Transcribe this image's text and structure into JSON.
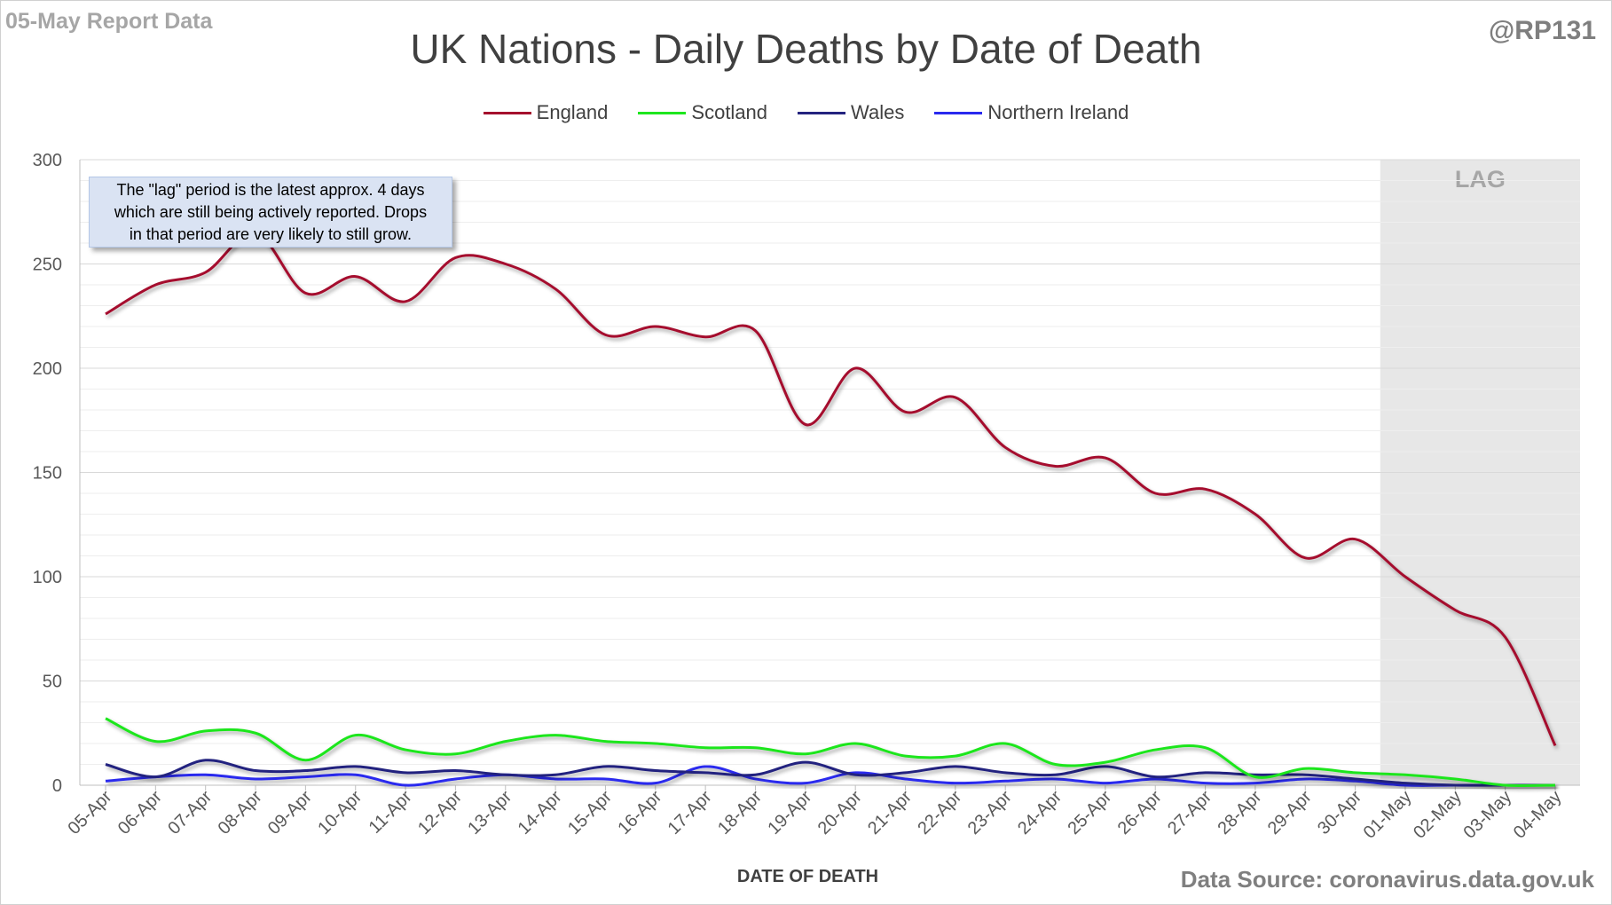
{
  "header": {
    "report_label": "05-May Report Data",
    "handle": "@RP131",
    "source": "Data Source: coronavirus.data.gov.uk"
  },
  "note": {
    "lines": [
      "The \"lag\" period is the latest approx. 4 days",
      "which are still being actively reported.  Drops",
      "in that period are very likely to still grow."
    ]
  },
  "chart_data": {
    "type": "line",
    "title": "UK Nations - Daily Deaths by Date of Death",
    "xlabel": "DATE OF DEATH",
    "ylabel": "",
    "ylim": [
      0,
      300
    ],
    "y_ticks": [
      0,
      50,
      100,
      150,
      200,
      250,
      300
    ],
    "grid": "horizontal major and minor",
    "legend": "top-center",
    "smoothed": true,
    "categories": [
      "05-Apr",
      "06-Apr",
      "07-Apr",
      "08-Apr",
      "09-Apr",
      "10-Apr",
      "11-Apr",
      "12-Apr",
      "13-Apr",
      "14-Apr",
      "15-Apr",
      "16-Apr",
      "17-Apr",
      "18-Apr",
      "19-Apr",
      "20-Apr",
      "21-Apr",
      "22-Apr",
      "23-Apr",
      "24-Apr",
      "25-Apr",
      "26-Apr",
      "27-Apr",
      "28-Apr",
      "29-Apr",
      "30-Apr",
      "01-May",
      "02-May",
      "03-May",
      "04-May"
    ],
    "lag": {
      "label": "LAG",
      "from": "01-May",
      "to": "04-May"
    },
    "series": [
      {
        "name": "England",
        "color": "#a50f2d",
        "values": [
          226,
          240,
          246,
          265,
          236,
          244,
          232,
          253,
          250,
          238,
          216,
          220,
          215,
          218,
          173,
          200,
          179,
          186,
          162,
          153,
          157,
          140,
          142,
          130,
          109,
          118,
          100,
          84,
          71,
          19
        ]
      },
      {
        "name": "Scotland",
        "color": "#1ee61e",
        "values": [
          32,
          21,
          26,
          25,
          12,
          24,
          17,
          15,
          21,
          24,
          21,
          20,
          18,
          18,
          15,
          20,
          14,
          14,
          20,
          10,
          11,
          17,
          18,
          4,
          8,
          6,
          5,
          3,
          0,
          0
        ]
      },
      {
        "name": "Wales",
        "color": "#24237f",
        "values": [
          10,
          4,
          12,
          7,
          7,
          9,
          6,
          7,
          5,
          5,
          9,
          7,
          6,
          5,
          11,
          5,
          6,
          9,
          6,
          5,
          9,
          4,
          6,
          5,
          5,
          3,
          1,
          0,
          0,
          0
        ]
      },
      {
        "name": "Northern Ireland",
        "color": "#2929ee",
        "values": [
          2,
          4,
          5,
          3,
          4,
          5,
          0,
          3,
          5,
          3,
          3,
          1,
          9,
          3,
          1,
          6,
          3,
          1,
          2,
          3,
          1,
          3,
          1,
          1,
          3,
          2,
          0,
          0,
          0,
          0
        ]
      }
    ]
  }
}
